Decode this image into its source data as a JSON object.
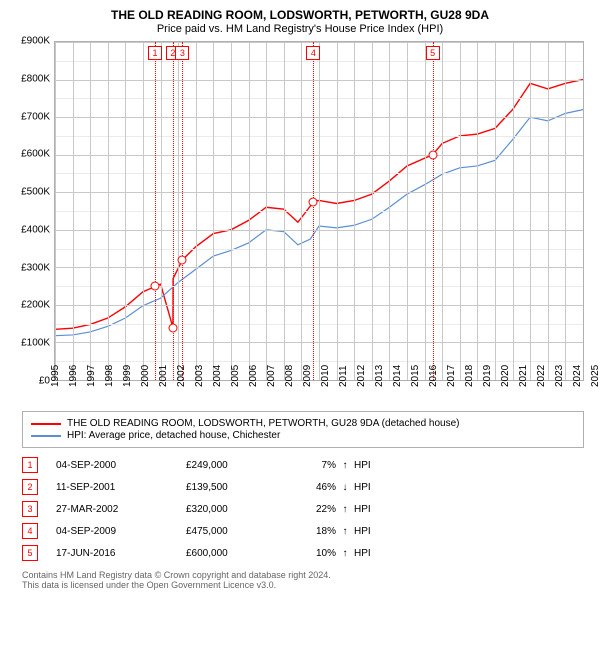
{
  "title": "THE OLD READING ROOM, LODSWORTH, PETWORTH, GU28 9DA",
  "subtitle": "Price paid vs. HM Land Registry's House Price Index (HPI)",
  "chart": {
    "type": "line",
    "background_color": "#ffffff",
    "grid_color_major": "#c8c8c8",
    "grid_color_minor": "#ebebeb",
    "xlim": [
      1995,
      2025
    ],
    "ylim": [
      0,
      900000
    ],
    "ytick_step": 100000,
    "yticks_labels": [
      "£0",
      "£100K",
      "£200K",
      "£300K",
      "£400K",
      "£500K",
      "£600K",
      "£700K",
      "£800K",
      "£900K"
    ],
    "xticks": [
      1995,
      1996,
      1997,
      1998,
      1999,
      2000,
      2001,
      2002,
      2003,
      2004,
      2005,
      2006,
      2007,
      2008,
      2009,
      2010,
      2011,
      2012,
      2013,
      2014,
      2015,
      2016,
      2017,
      2018,
      2019,
      2020,
      2021,
      2022,
      2023,
      2024,
      2025
    ],
    "series": [
      {
        "name": "THE OLD READING ROOM, LODSWORTH, PETWORTH, GU28 9DA (detached house)",
        "color": "#ff0000",
        "line_width": 1.4,
        "data": [
          [
            1995,
            135000
          ],
          [
            1996,
            138000
          ],
          [
            1997,
            148000
          ],
          [
            1998,
            165000
          ],
          [
            1999,
            195000
          ],
          [
            2000,
            235000
          ],
          [
            2000.7,
            249000
          ],
          [
            2001,
            255000
          ],
          [
            2001.7,
            139500
          ],
          [
            2001.71,
            270000
          ],
          [
            2002.24,
            320000
          ],
          [
            2003,
            355000
          ],
          [
            2004,
            390000
          ],
          [
            2005,
            400000
          ],
          [
            2006,
            425000
          ],
          [
            2007,
            460000
          ],
          [
            2008,
            455000
          ],
          [
            2008.8,
            420000
          ],
          [
            2009.7,
            475000
          ],
          [
            2010,
            478000
          ],
          [
            2011,
            470000
          ],
          [
            2012,
            478000
          ],
          [
            2013,
            495000
          ],
          [
            2014,
            530000
          ],
          [
            2015,
            570000
          ],
          [
            2016.46,
            600000
          ],
          [
            2017,
            630000
          ],
          [
            2018,
            650000
          ],
          [
            2019,
            655000
          ],
          [
            2020,
            670000
          ],
          [
            2021,
            720000
          ],
          [
            2022,
            790000
          ],
          [
            2023,
            775000
          ],
          [
            2024,
            790000
          ],
          [
            2025,
            800000
          ]
        ]
      },
      {
        "name": "HPI: Average price, detached house, Chichester",
        "color": "#5b8fd6",
        "line_width": 1.2,
        "data": [
          [
            1995,
            118000
          ],
          [
            1996,
            120000
          ],
          [
            1997,
            128000
          ],
          [
            1998,
            143000
          ],
          [
            1999,
            165000
          ],
          [
            2000,
            198000
          ],
          [
            2001,
            218000
          ],
          [
            2002,
            260000
          ],
          [
            2003,
            295000
          ],
          [
            2004,
            330000
          ],
          [
            2005,
            345000
          ],
          [
            2006,
            365000
          ],
          [
            2007,
            400000
          ],
          [
            2008,
            395000
          ],
          [
            2008.8,
            360000
          ],
          [
            2009.5,
            375000
          ],
          [
            2010,
            410000
          ],
          [
            2011,
            405000
          ],
          [
            2012,
            412000
          ],
          [
            2013,
            428000
          ],
          [
            2014,
            460000
          ],
          [
            2015,
            495000
          ],
          [
            2016,
            520000
          ],
          [
            2017,
            548000
          ],
          [
            2018,
            565000
          ],
          [
            2019,
            570000
          ],
          [
            2020,
            585000
          ],
          [
            2021,
            640000
          ],
          [
            2022,
            700000
          ],
          [
            2023,
            690000
          ],
          [
            2024,
            710000
          ],
          [
            2025,
            720000
          ]
        ]
      }
    ],
    "reference_lines": [
      {
        "index": "1",
        "x": 2000.68
      },
      {
        "index": "2",
        "x": 2001.7
      },
      {
        "index": "3",
        "x": 2002.24
      },
      {
        "index": "4",
        "x": 2009.68
      },
      {
        "index": "5",
        "x": 2016.46
      }
    ],
    "sale_points": [
      {
        "x": 2000.68,
        "y": 249000
      },
      {
        "x": 2001.7,
        "y": 139500
      },
      {
        "x": 2002.24,
        "y": 320000
      },
      {
        "x": 2009.68,
        "y": 475000
      },
      {
        "x": 2016.46,
        "y": 600000
      }
    ]
  },
  "legend": {
    "items": [
      {
        "color": "#ff0000",
        "label": "THE OLD READING ROOM, LODSWORTH, PETWORTH, GU28 9DA (detached house)"
      },
      {
        "color": "#5b8fd6",
        "label": "HPI: Average price, detached house, Chichester"
      }
    ]
  },
  "table": {
    "hpi_label": "HPI",
    "rows": [
      {
        "idx": "1",
        "date": "04-SEP-2000",
        "price": "£249,000",
        "pct": "7%",
        "arrow": "↑"
      },
      {
        "idx": "2",
        "date": "11-SEP-2001",
        "price": "£139,500",
        "pct": "46%",
        "arrow": "↓"
      },
      {
        "idx": "3",
        "date": "27-MAR-2002",
        "price": "£320,000",
        "pct": "22%",
        "arrow": "↑"
      },
      {
        "idx": "4",
        "date": "04-SEP-2009",
        "price": "£475,000",
        "pct": "18%",
        "arrow": "↑"
      },
      {
        "idx": "5",
        "date": "17-JUN-2016",
        "price": "£600,000",
        "pct": "10%",
        "arrow": "↑"
      }
    ]
  },
  "footer": {
    "line1": "Contains HM Land Registry data © Crown copyright and database right 2024.",
    "line2": "This data is licensed under the Open Government Licence v3.0."
  }
}
